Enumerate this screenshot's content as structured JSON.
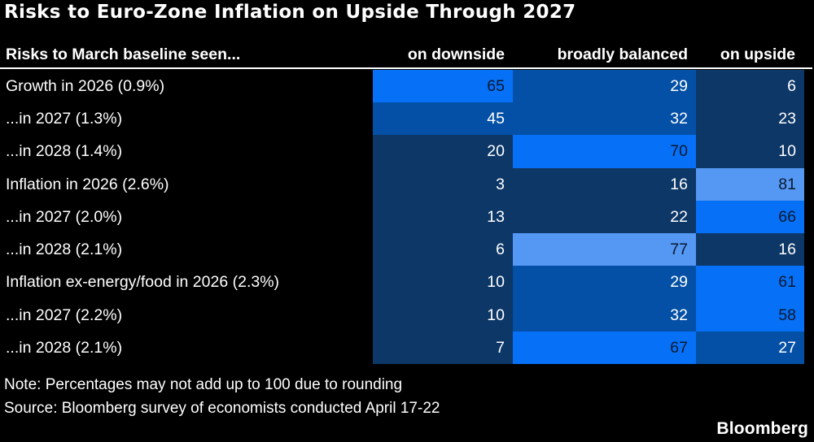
{
  "chart_data": {
    "type": "heatmap",
    "title": "Risks to Euro-Zone Inflation on Upside Through 2027",
    "row_header": "Risks to March baseline seen...",
    "columns": [
      "on downside",
      "broadly balanced",
      "on upside"
    ],
    "rows": [
      {
        "label": "Growth in 2026 (0.9%)",
        "values": [
          65,
          29,
          6
        ]
      },
      {
        "label": "...in 2027 (1.3%)",
        "values": [
          45,
          32,
          23
        ]
      },
      {
        "label": "...in 2028 (1.4%)",
        "values": [
          20,
          70,
          10
        ]
      },
      {
        "label": "Inflation in 2026 (2.6%)",
        "values": [
          3,
          16,
          81
        ]
      },
      {
        "label": "...in 2027 (2.0%)",
        "values": [
          13,
          22,
          66
        ]
      },
      {
        "label": "...in 2028 (2.1%)",
        "values": [
          6,
          77,
          16
        ]
      },
      {
        "label": "Inflation ex-energy/food in 2026 (2.3%)",
        "values": [
          10,
          29,
          61
        ]
      },
      {
        "label": "...in 2027 (2.2%)",
        "values": [
          10,
          32,
          58
        ]
      },
      {
        "label": "...in 2028 (2.1%)",
        "values": [
          7,
          67,
          27
        ]
      }
    ],
    "units": "percent of respondents",
    "color_scale": {
      "buckets": [
        {
          "max": 24,
          "bg": "#0c3767",
          "text": "#ffffff"
        },
        {
          "max": 49,
          "bg": "#0450a6",
          "text": "#ffffff"
        },
        {
          "max": 74,
          "bg": "#0670f7",
          "text": "#07192e"
        },
        {
          "max": 100,
          "bg": "#5598f3",
          "text": "#07192e"
        }
      ]
    },
    "layout": {
      "background": "#000000",
      "grid": false,
      "legend": "none"
    }
  },
  "footer": {
    "note": "Note: Percentages may not add up to 100 due to rounding",
    "source": "Source: Bloomberg survey of economists conducted April 17-22",
    "brand": "Bloomberg"
  }
}
